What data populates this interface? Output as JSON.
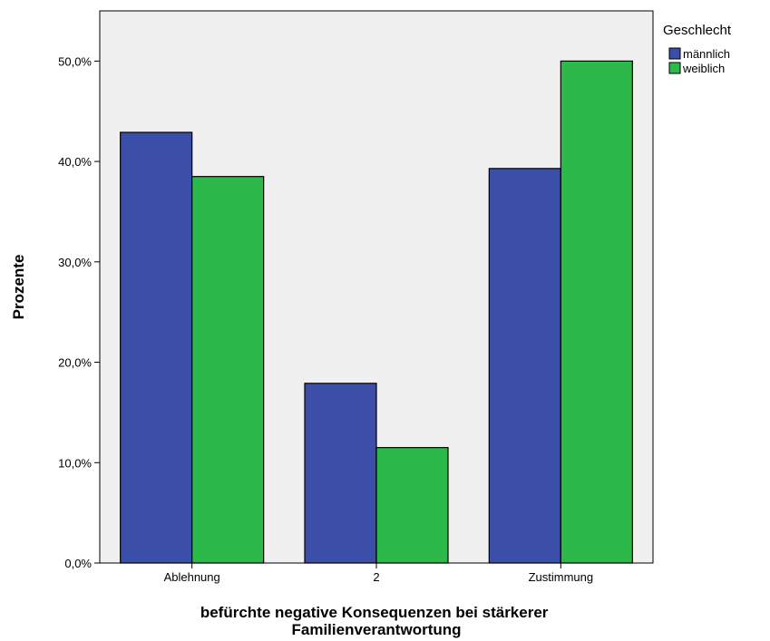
{
  "chart_data": {
    "type": "bar",
    "categories": [
      "Ablehnung",
      "2",
      "Zustimmung"
    ],
    "series": [
      {
        "name": "männlich",
        "values": [
          42.9,
          17.9,
          39.3
        ],
        "color": "#3b4fa8"
      },
      {
        "name": "weiblich",
        "values": [
          38.5,
          11.5,
          50.0
        ],
        "color": "#2db84a"
      }
    ],
    "xlabel_lines": [
      "befürchte negative Konsequenzen bei stärkerer",
      "Familienverantwortung"
    ],
    "ylabel": "Prozente",
    "ylim": [
      0,
      55
    ],
    "yticks": [
      0,
      10,
      20,
      30,
      40,
      50
    ],
    "ytick_labels": [
      "0,0%",
      "10,0%",
      "20,0%",
      "30,0%",
      "40,0%",
      "50,0%"
    ],
    "legend_title": "Geschlecht",
    "legend_position": "top-right",
    "plot_background": "#f0f0f0",
    "grid": false
  }
}
